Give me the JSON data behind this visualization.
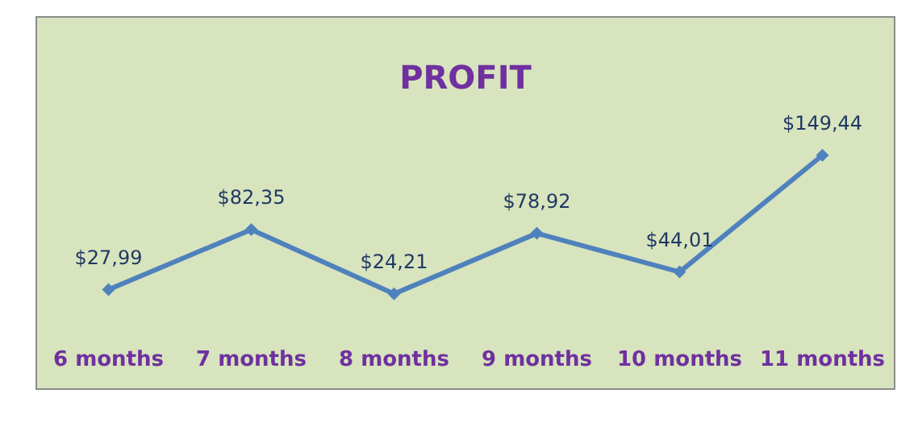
{
  "chart_data": {
    "type": "line",
    "title": "PROFIT",
    "categories": [
      "6 months",
      "7 months",
      "8 months",
      "9 months",
      "10 months",
      "11 months"
    ],
    "series": [
      {
        "color": "#4f81bd",
        "values": [
          27.99,
          82.35,
          24.21,
          78.92,
          44.01,
          149.44
        ],
        "value_labels": [
          "$27,99",
          "$82,35",
          "$24,21",
          "$78,92",
          "$44,01",
          "$149,44"
        ]
      }
    ],
    "marker": "diamond",
    "line_style": "solid"
  }
}
